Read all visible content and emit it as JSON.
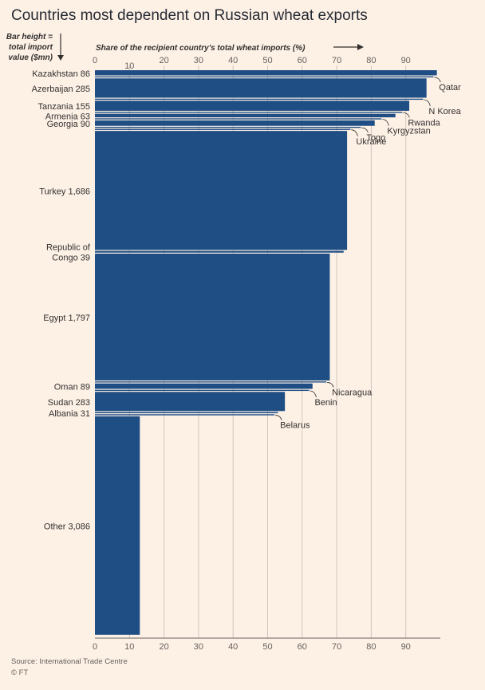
{
  "title": "Countries most dependent on Russian wheat exports",
  "chart_data": {
    "type": "bar",
    "orientation": "horizontal",
    "variable_width": true,
    "bar_height_label": [
      "Bar height =",
      "total import",
      "value ($mn)"
    ],
    "xlabel": "Share of the recipient country's total wheat imports (%)",
    "xlim": [
      0,
      100
    ],
    "x_ticks": [
      0,
      10,
      20,
      30,
      40,
      50,
      60,
      70,
      80,
      90
    ],
    "highlighted_tick_top": "10",
    "grid": true,
    "bar_color": "#1f4e85",
    "series": [
      {
        "name": "Kazakhstan",
        "import_value": 86,
        "share": 99,
        "label": "Kazakhstan 86"
      },
      {
        "name": "Qatar",
        "import_value": 18,
        "share": 98,
        "label": "Qatar",
        "annotated": true
      },
      {
        "name": "Azerbaijan",
        "import_value": 285,
        "share": 96,
        "label": "Azerbaijan 285"
      },
      {
        "name": "N Korea",
        "import_value": 5,
        "share": 95,
        "label": "N Korea",
        "annotated": true
      },
      {
        "name": "Tanzania",
        "import_value": 155,
        "share": 91,
        "label": "Tanzania 155"
      },
      {
        "name": "Rwanda",
        "import_value": 6,
        "share": 89,
        "label": "Rwanda",
        "annotated": true
      },
      {
        "name": "Armenia",
        "import_value": 63,
        "share": 87,
        "label": "Armenia 63"
      },
      {
        "name": "Kyrgyzstan",
        "import_value": 6,
        "share": 83,
        "label": "Kyrgyzstan",
        "annotated": true
      },
      {
        "name": "Georgia",
        "import_value": 90,
        "share": 81,
        "label": "Georgia 90"
      },
      {
        "name": "Togo",
        "import_value": 5,
        "share": 77,
        "label": "Togo",
        "annotated": true
      },
      {
        "name": "Ukraine",
        "import_value": 4,
        "share": 74,
        "label": "Ukraine",
        "annotated": true
      },
      {
        "name": "Turkey",
        "import_value": 1686,
        "share": 73,
        "label": "Turkey 1,686"
      },
      {
        "name": "Republic of Congo",
        "import_value": 39,
        "share": 72,
        "label": "Republic of Congo 39"
      },
      {
        "name": "Egypt",
        "import_value": 1797,
        "share": 68,
        "label": "Egypt 1,797"
      },
      {
        "name": "Nicaragua",
        "import_value": 5,
        "share": 67,
        "label": "Nicaragua",
        "annotated": true
      },
      {
        "name": "Oman",
        "import_value": 89,
        "share": 63,
        "label": "Oman 89"
      },
      {
        "name": "Benin",
        "import_value": 5,
        "share": 62,
        "label": "Benin",
        "annotated": true
      },
      {
        "name": "Sudan",
        "import_value": 283,
        "share": 55,
        "label": "Sudan 283"
      },
      {
        "name": "Albania",
        "import_value": 31,
        "share": 53,
        "label": "Albania 31"
      },
      {
        "name": "Belarus",
        "import_value": 4,
        "share": 52,
        "label": "Belarus",
        "annotated": true
      },
      {
        "name": "Other",
        "import_value": 3086,
        "share": 13,
        "label": "Other 3,086"
      }
    ]
  },
  "source": "Source: International Trade Centre",
  "credit": "© FT"
}
